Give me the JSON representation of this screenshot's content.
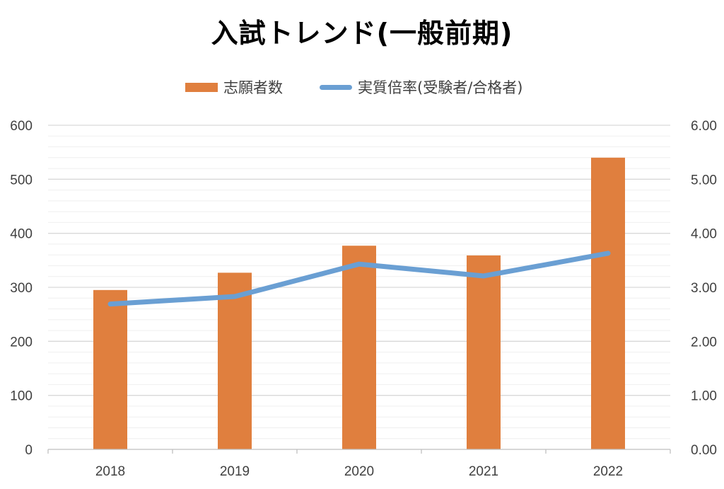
{
  "chart_data": {
    "type": "bar",
    "title": "入試トレンド(一般前期)",
    "categories": [
      "2018",
      "2019",
      "2020",
      "2021",
      "2022"
    ],
    "series": [
      {
        "name": "志願者数",
        "type": "bar",
        "axis": "left",
        "color": "#E07F3E",
        "values": [
          295,
          327,
          377,
          359,
          540
        ]
      },
      {
        "name": "実質倍率(受験者/合格者)",
        "type": "line",
        "axis": "right",
        "color": "#6A9FD3",
        "values": [
          2.69,
          2.83,
          3.43,
          3.21,
          3.63
        ]
      }
    ],
    "y_left": {
      "range": [
        0,
        600
      ],
      "ticks": [
        "0",
        "100",
        "200",
        "300",
        "400",
        "500",
        "600"
      ]
    },
    "y_right": {
      "range": [
        0,
        6
      ],
      "ticks": [
        "0.00",
        "1.00",
        "2.00",
        "3.00",
        "4.00",
        "5.00",
        "6.00"
      ]
    },
    "grid": true,
    "legend_position": "top"
  }
}
